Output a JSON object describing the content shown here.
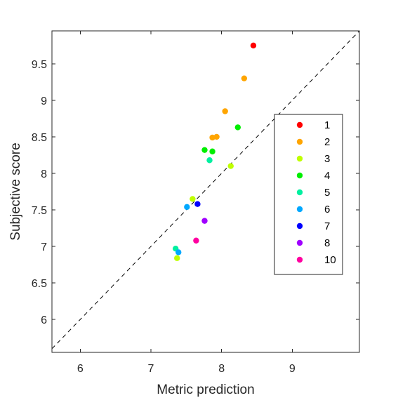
{
  "chart_data": {
    "type": "scatter",
    "xlabel": "Metric prediction",
    "ylabel": "Subjective score",
    "xlim": [
      5.6,
      9.95
    ],
    "ylim": [
      5.55,
      9.95
    ],
    "xticks": [
      6,
      7,
      8,
      9
    ],
    "yticks": [
      6,
      6.5,
      7,
      7.5,
      8,
      8.5,
      9,
      9.5
    ],
    "xtick_labels": [
      "6",
      "7",
      "8",
      "9"
    ],
    "ytick_labels": [
      "6",
      "6.5",
      "7",
      "7.5",
      "8",
      "8.5",
      "9",
      "9.5"
    ],
    "grid": false,
    "reference_line": "y = x (dashed)",
    "legend_position": "right",
    "series": [
      {
        "name": "1",
        "color": "#ff0000",
        "points": [
          [
            8.45,
            9.75
          ]
        ]
      },
      {
        "name": "2",
        "color": "#ffa500",
        "points": [
          [
            8.32,
            9.3
          ],
          [
            8.05,
            8.85
          ],
          [
            7.87,
            8.49
          ],
          [
            7.93,
            8.5
          ]
        ]
      },
      {
        "name": "3",
        "color": "#bfff00",
        "points": [
          [
            8.13,
            8.1
          ],
          [
            7.59,
            7.65
          ],
          [
            7.37,
            6.84
          ]
        ]
      },
      {
        "name": "4",
        "color": "#00ee00",
        "points": [
          [
            8.23,
            8.63
          ],
          [
            7.76,
            8.32
          ],
          [
            7.87,
            8.3
          ]
        ]
      },
      {
        "name": "5",
        "color": "#00f0a0",
        "points": [
          [
            7.83,
            8.18
          ],
          [
            7.35,
            6.97
          ]
        ]
      },
      {
        "name": "6",
        "color": "#00a8ff",
        "points": [
          [
            7.51,
            7.54
          ],
          [
            7.39,
            6.92
          ]
        ]
      },
      {
        "name": "7",
        "color": "#0000ff",
        "points": [
          [
            7.66,
            7.58
          ]
        ]
      },
      {
        "name": "8",
        "color": "#a000ff",
        "points": [
          [
            7.76,
            7.35
          ]
        ]
      },
      {
        "name": "10",
        "color": "#ff00a0",
        "points": [
          [
            7.64,
            7.08
          ]
        ]
      }
    ]
  }
}
